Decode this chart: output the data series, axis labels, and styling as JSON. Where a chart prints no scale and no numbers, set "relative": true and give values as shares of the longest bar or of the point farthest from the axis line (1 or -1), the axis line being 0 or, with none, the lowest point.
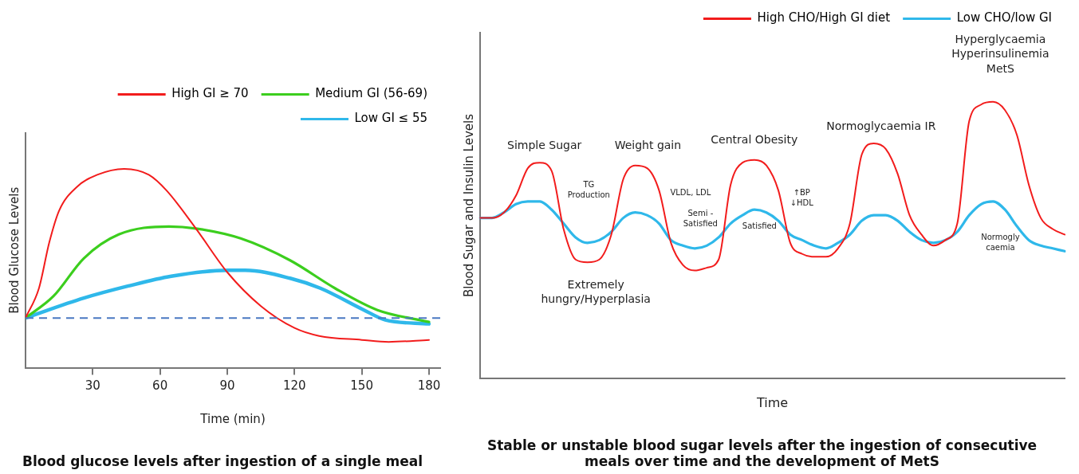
{
  "chart_data": [
    {
      "type": "line",
      "title": "Blood glucose levels after ingestion of a single meal",
      "xlabel": "Time (min)",
      "ylabel": "Blood Glucose Levels",
      "relative": true,
      "xlim": [
        0,
        185
      ],
      "xticks": [
        30,
        60,
        90,
        120,
        150,
        180
      ],
      "tick_labels": "x",
      "grid": false,
      "legend": "top right",
      "marker": "none",
      "line_style": "solid",
      "ref_lines": [
        {
          "axis": "y",
          "value": 0.25,
          "color": "#4a78c2",
          "line_style": "dashed"
        }
      ],
      "series": [
        {
          "name": "High GI ≥ 70",
          "color": "#f21c1c",
          "x": [
            0,
            6,
            10.6,
            15,
            23,
            32,
            44,
            55,
            63,
            76,
            90,
            105,
            120,
            131,
            150,
            162,
            180
          ],
          "values": [
            0.25,
            0.4,
            0.63,
            0.79,
            0.91,
            0.97,
            1.0,
            0.97,
            0.89,
            0.7,
            0.48,
            0.31,
            0.2,
            0.16,
            0.14,
            0.13,
            0.14
          ]
        },
        {
          "name": "Medium GI (56-69)",
          "color": "#3cce1e",
          "x": [
            0,
            12.5,
            26,
            41.6,
            64,
            76,
            96,
            118,
            138,
            157,
            180
          ],
          "values": [
            0.25,
            0.36,
            0.55,
            0.67,
            0.71,
            0.7,
            0.65,
            0.54,
            0.4,
            0.29,
            0.23
          ]
        },
        {
          "name": "Low GI ≤ 55",
          "color": "#2fb8ea",
          "x": [
            0,
            26,
            45.6,
            65,
            90.5,
            98,
            118,
            131.5,
            151,
            160.5,
            180
          ],
          "values": [
            0.25,
            0.35,
            0.41,
            0.46,
            0.49,
            0.49,
            0.45,
            0.4,
            0.29,
            0.24,
            0.22
          ]
        }
      ]
    },
    {
      "type": "line",
      "title": "Stable or unstable blood sugar levels after the ingestion of consecutive meals over time and the development of MetS",
      "xlabel": "Time",
      "ylabel": "Blood Sugar and Insulin Levels",
      "relative": true,
      "tick_labels": false,
      "grid": false,
      "legend": "top right",
      "marker": "none",
      "line_style": "solid",
      "categories": [
        null,
        null,
        null,
        null,
        null,
        null,
        null,
        null,
        null,
        null,
        null,
        null,
        null,
        null,
        null,
        null,
        null,
        null,
        null,
        null,
        null,
        null,
        null,
        null,
        null,
        null,
        null,
        null,
        null,
        null,
        null,
        null,
        null,
        null,
        null,
        null,
        null,
        null,
        null,
        null,
        null,
        null,
        null,
        null,
        null,
        null,
        null,
        null,
        null,
        null
      ],
      "annotations": [
        "Simple Sugar",
        "TG\nProduction",
        "Extremely\nhungry/Hyperplasia",
        "Weight gain",
        "VLDL, LDL",
        "Semi -\nSatisfied",
        "Central Obesity",
        "Satisfied",
        "↑BP\n↓HDL",
        "Normoglycaemia IR",
        "Hyperglycaemia\nHyperinsulinemia\nMetS",
        "Normogly\ncaemia"
      ],
      "series": [
        {
          "name": "High CHO/High GI diet",
          "color": "#f21c1c",
          "values": [
            0.58,
            0.58,
            0.6,
            0.66,
            0.76,
            0.78,
            0.75,
            0.54,
            0.43,
            0.42,
            0.43,
            0.52,
            0.72,
            0.77,
            0.76,
            0.68,
            0.49,
            0.41,
            0.39,
            0.4,
            0.43,
            0.7,
            0.78,
            0.79,
            0.77,
            0.68,
            0.49,
            0.45,
            0.44,
            0.44,
            0.47,
            0.56,
            0.81,
            0.85,
            0.83,
            0.74,
            0.59,
            0.52,
            0.48,
            0.5,
            0.56,
            0.93,
            0.99,
            1.0,
            0.97,
            0.88,
            0.7,
            0.58,
            0.54,
            0.52
          ]
        },
        {
          "name": "Low CHO/low GI",
          "color": "#2fb8ea",
          "values": [
            0.58,
            0.58,
            0.6,
            0.63,
            0.64,
            0.64,
            0.61,
            0.56,
            0.51,
            0.49,
            0.5,
            0.53,
            0.58,
            0.6,
            0.59,
            0.56,
            0.5,
            0.48,
            0.47,
            0.48,
            0.51,
            0.56,
            0.59,
            0.61,
            0.6,
            0.57,
            0.52,
            0.5,
            0.48,
            0.47,
            0.49,
            0.52,
            0.57,
            0.59,
            0.59,
            0.57,
            0.53,
            0.5,
            0.49,
            0.5,
            0.53,
            0.59,
            0.63,
            0.64,
            0.61,
            0.55,
            0.5,
            0.48,
            0.47,
            0.46
          ]
        }
      ]
    }
  ]
}
